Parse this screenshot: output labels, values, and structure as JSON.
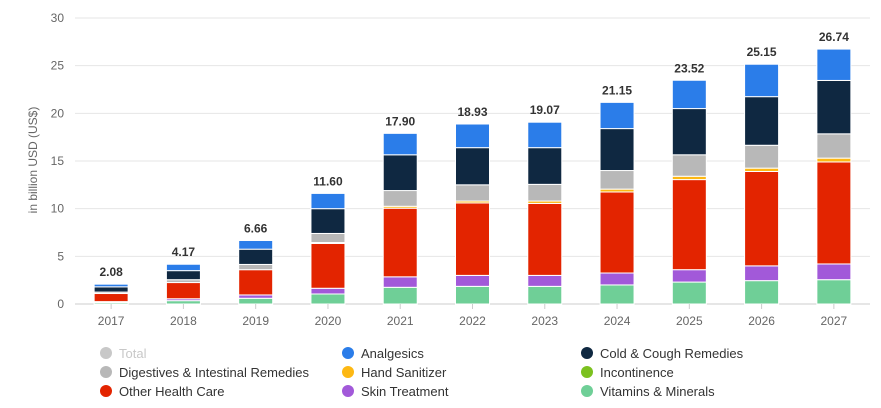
{
  "chart_data": {
    "type": "bar",
    "stacked": true,
    "title": "",
    "xlabel": "",
    "ylabel": "in billion USD (US$)",
    "ylim": [
      0,
      30
    ],
    "yticks": [
      0,
      5,
      10,
      15,
      20,
      25,
      30
    ],
    "grid": true,
    "legend_position": "bottom",
    "categories": [
      "2017",
      "2018",
      "2019",
      "2020",
      "2021",
      "2022",
      "2023",
      "2024",
      "2025",
      "2026",
      "2027"
    ],
    "totals": [
      "2.08",
      "4.17",
      "6.66",
      "11.60",
      "17.90",
      "18.93",
      "19.07",
      "21.15",
      "23.52",
      "25.15",
      "26.74"
    ],
    "series": [
      {
        "name": "Vitamins & Minerals",
        "color": "#6fcf97",
        "values": [
          0.15,
          0.35,
          0.6,
          1.05,
          1.75,
          1.85,
          1.85,
          2.0,
          2.3,
          2.45,
          2.55
        ]
      },
      {
        "name": "Skin Treatment",
        "color": "#a259d9",
        "values": [
          0.1,
          0.2,
          0.35,
          0.6,
          1.1,
          1.15,
          1.15,
          1.25,
          1.3,
          1.55,
          1.65
        ]
      },
      {
        "name": "Incontinence",
        "color": "#7cc11f",
        "values": [
          0.0,
          0.0,
          0.0,
          0.0,
          0.0,
          0.0,
          0.0,
          0.0,
          0.0,
          0.0,
          0.0
        ]
      },
      {
        "name": "Other Health Care",
        "color": "#e32400",
        "values": [
          0.85,
          1.7,
          2.65,
          4.7,
          7.2,
          7.6,
          7.55,
          8.5,
          9.45,
          9.9,
          10.7
        ]
      },
      {
        "name": "Hand Sanitizer",
        "color": "#fdb813",
        "values": [
          0.0,
          0.0,
          0.0,
          0.1,
          0.2,
          0.2,
          0.25,
          0.3,
          0.35,
          0.35,
          0.4
        ]
      },
      {
        "name": "Digestives & Intestinal Remedies",
        "color": "#b8b8b8",
        "values": [
          0.15,
          0.3,
          0.55,
          0.95,
          1.65,
          1.7,
          1.75,
          1.95,
          2.25,
          2.4,
          2.55
        ]
      },
      {
        "name": "Cold & Cough Remedies",
        "color": "#0f2841",
        "values": [
          0.55,
          0.95,
          1.6,
          2.6,
          3.75,
          3.9,
          3.85,
          4.4,
          4.85,
          5.1,
          5.6
        ]
      },
      {
        "name": "Analgesics",
        "color": "#2b7de9",
        "values": [
          0.28,
          0.67,
          0.91,
          1.6,
          2.25,
          2.48,
          2.67,
          2.75,
          2.97,
          3.4,
          3.29
        ]
      },
      {
        "name": "Total",
        "color": "#c8c8c8",
        "hidden": true,
        "values": [
          2.08,
          4.17,
          6.66,
          11.6,
          17.9,
          18.93,
          19.07,
          21.15,
          23.52,
          25.15,
          26.74
        ]
      }
    ]
  },
  "legend": [
    {
      "label": "Total",
      "color": "#c8c8c8",
      "hidden": true
    },
    {
      "label": "Analgesics",
      "color": "#2b7de9"
    },
    {
      "label": "Cold & Cough Remedies",
      "color": "#0f2841"
    },
    {
      "label": "Digestives & Intestinal Remedies",
      "color": "#b8b8b8"
    },
    {
      "label": "Hand Sanitizer",
      "color": "#fdb813"
    },
    {
      "label": "Incontinence",
      "color": "#7cc11f"
    },
    {
      "label": "Other Health Care",
      "color": "#e32400"
    },
    {
      "label": "Skin Treatment",
      "color": "#a259d9"
    },
    {
      "label": "Vitamins & Minerals",
      "color": "#6fcf97"
    }
  ]
}
